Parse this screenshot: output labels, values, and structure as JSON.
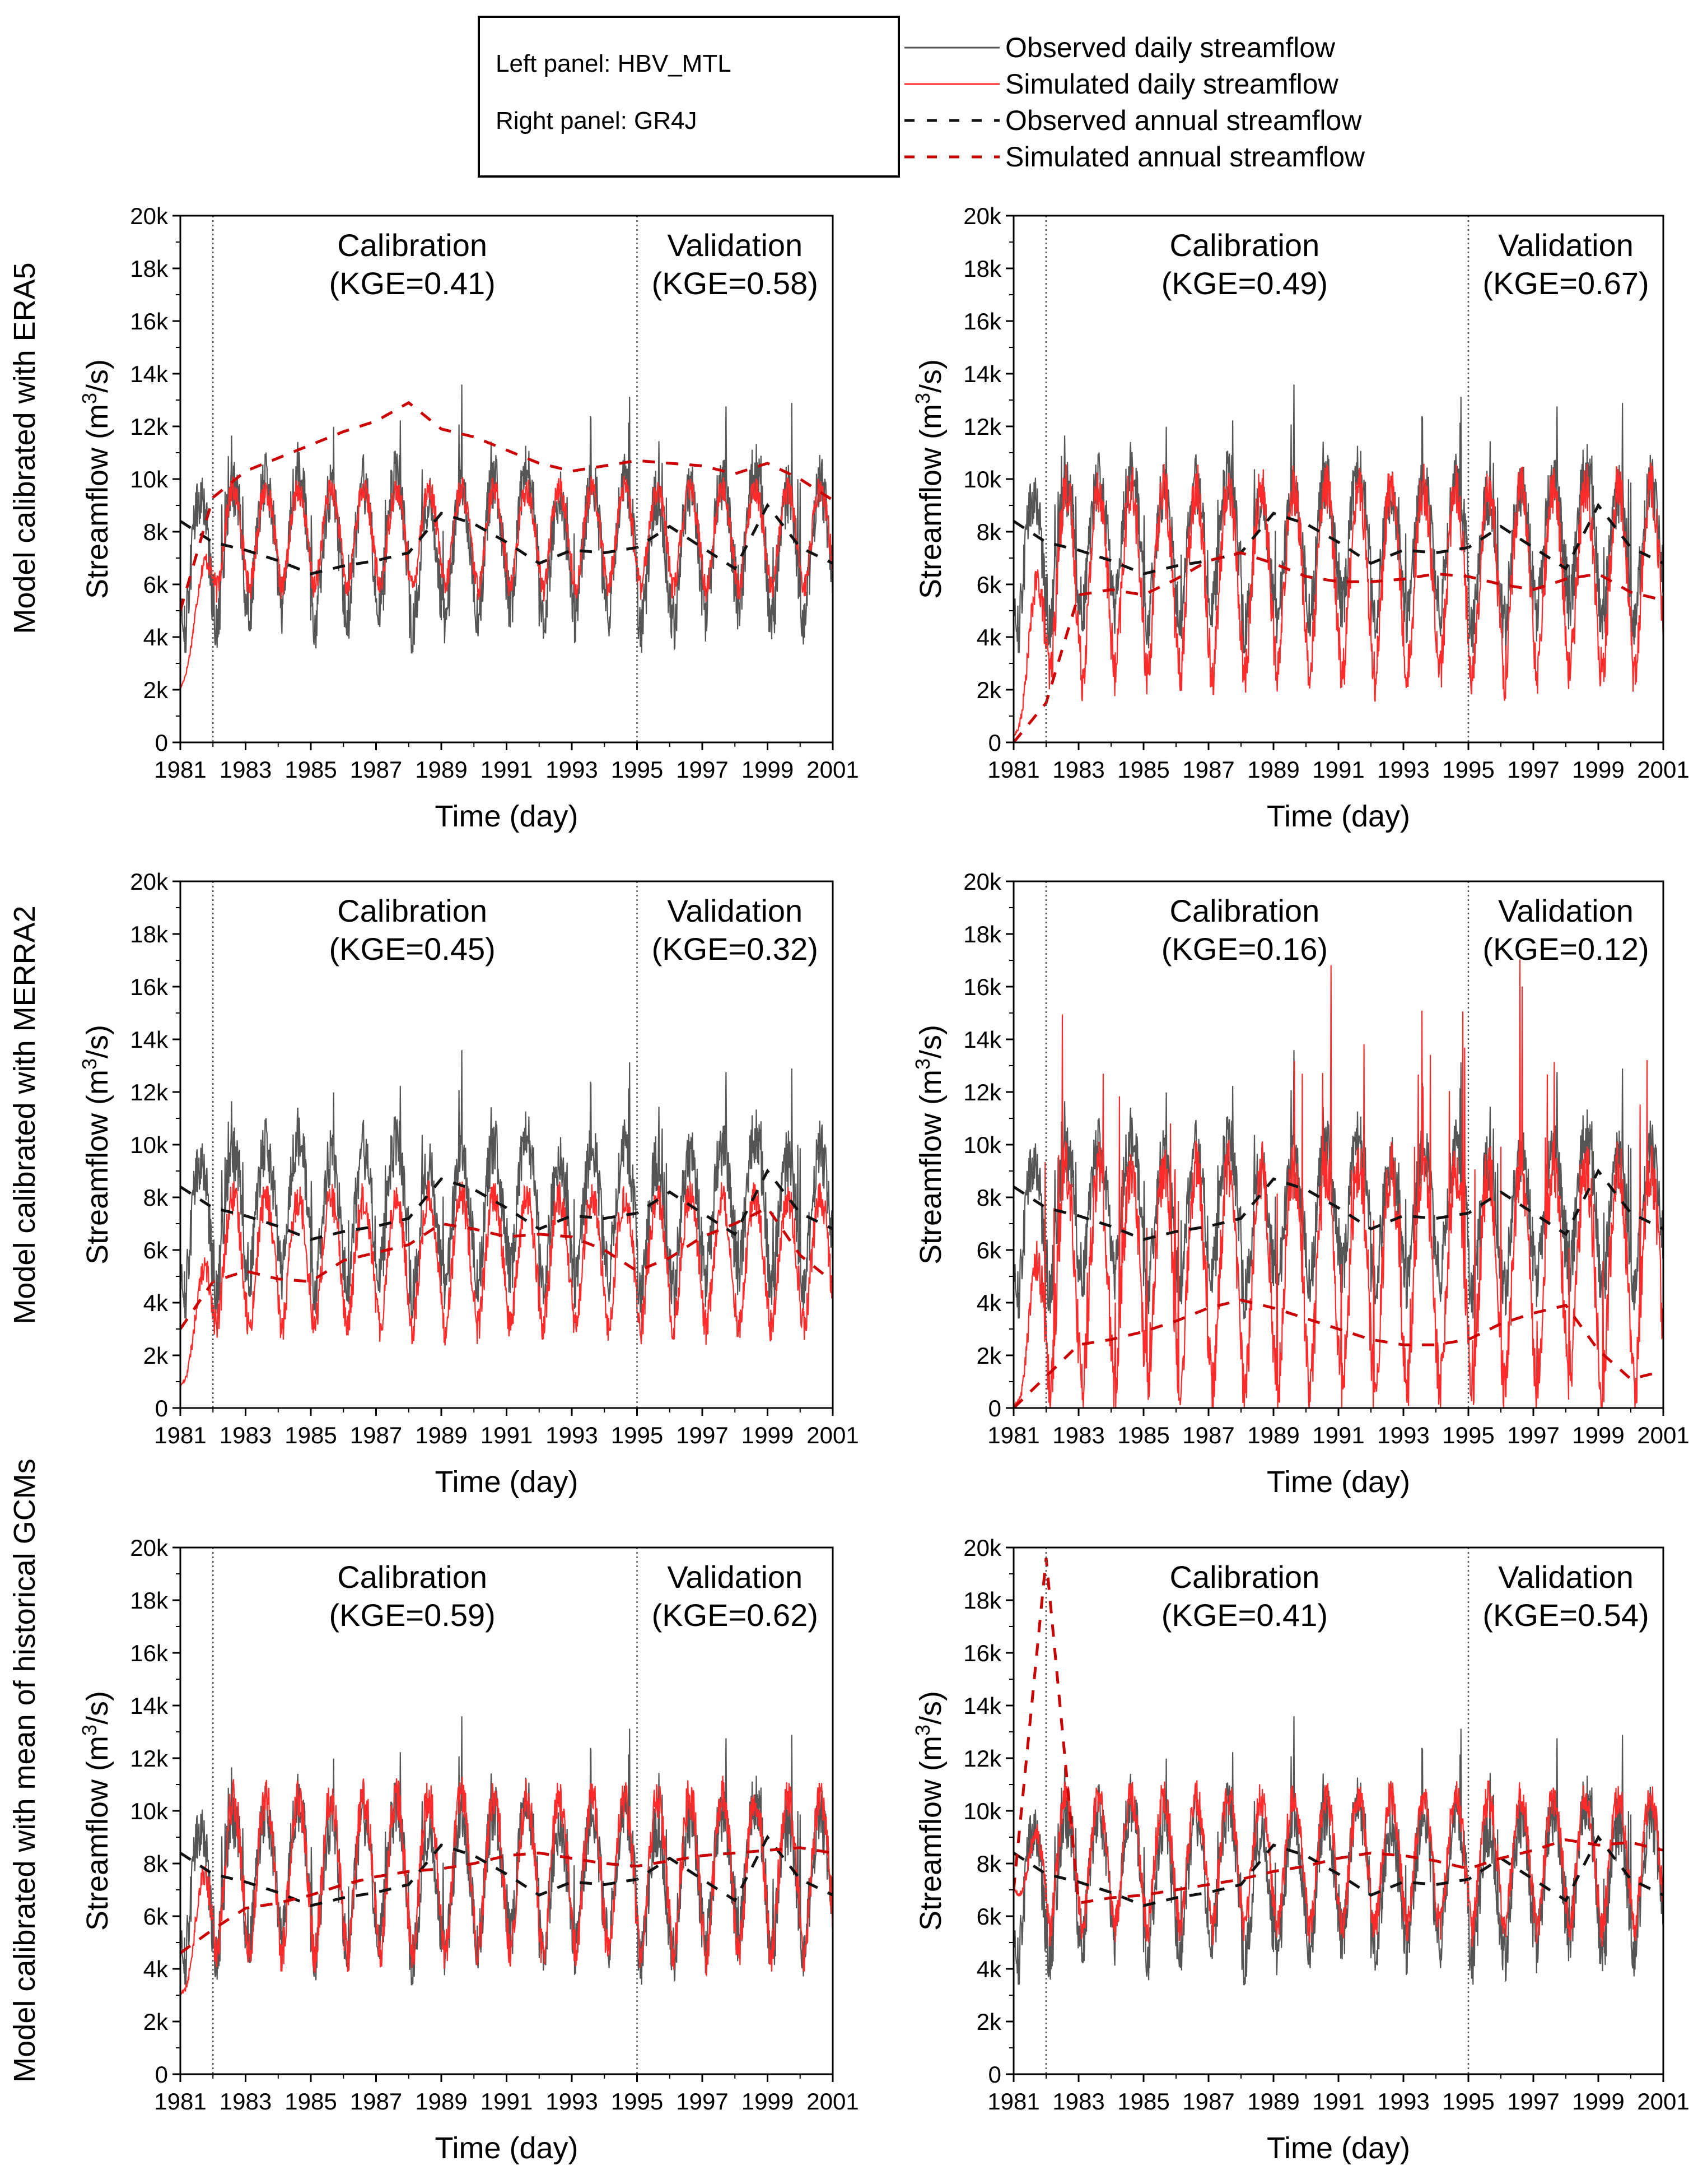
{
  "legend": {
    "panel_notes": [
      "Left panel: HBV_MTL",
      "Right panel: GR4J"
    ],
    "entries": [
      {
        "label": "Observed daily streamflow",
        "color": "#555555",
        "style": "solid"
      },
      {
        "label": "Simulated daily streamflow",
        "color": "#ff2a2a",
        "style": "solid"
      },
      {
        "label": "Observed annual streamflow",
        "color": "#111111",
        "style": "dashed"
      },
      {
        "label": "Simulated annual streamflow",
        "color": "#cc0000",
        "style": "dashed"
      }
    ]
  },
  "row_labels": [
    "Model calibrated with ERA5",
    "Model calibrated with MERRA2",
    "Model calibrated with mean of historical GCMs"
  ],
  "chart_data": [
    {
      "type": "line",
      "model": "HBV_MTL",
      "forcing": "ERA5",
      "xlabel": "Time (day)",
      "ylabel": "Streamflow (m3/s)",
      "xlim": [
        1981,
        2001
      ],
      "ylim": [
        0,
        20000
      ],
      "xticks": [
        "1981",
        "1983",
        "1985",
        "1987",
        "1989",
        "1991",
        "1993",
        "1995",
        "1997",
        "1999",
        "2001"
      ],
      "yticks": [
        "0",
        "2k",
        "4k",
        "6k",
        "8k",
        "10k",
        "12k",
        "14k",
        "16k",
        "18k",
        "20k"
      ],
      "periods": {
        "calibration_start": 1982,
        "validation_start": 1995
      },
      "annotations": [
        {
          "text": "Calibration",
          "sub": "(KGE=0.41)"
        },
        {
          "text": "Validation",
          "sub": "(KGE=0.58)"
        }
      ],
      "sim_daily": {
        "base": 5800,
        "amp": 3800,
        "start_level": 2000
      },
      "observed_annual": [
        8400,
        7600,
        7300,
        6900,
        6400,
        6700,
        6900,
        7200,
        8700,
        8300,
        7600,
        6800,
        7300,
        7200,
        7400,
        8200,
        7400,
        6600,
        9000,
        7400,
        6800
      ],
      "simulated_annual": [
        5000,
        9300,
        10300,
        10800,
        11300,
        11800,
        12200,
        12900,
        11900,
        11600,
        11100,
        10600,
        10300,
        10500,
        10700,
        10600,
        10500,
        10200,
        10600,
        10000,
        9200
      ]
    },
    {
      "type": "line",
      "model": "GR4J",
      "forcing": "ERA5",
      "xlabel": "Time (day)",
      "ylabel": "Streamflow (m3/s)",
      "xlim": [
        1981,
        2001
      ],
      "ylim": [
        0,
        20000
      ],
      "xticks": [
        "1981",
        "1983",
        "1985",
        "1987",
        "1989",
        "1991",
        "1993",
        "1995",
        "1997",
        "1999",
        "2001"
      ],
      "yticks": [
        "0",
        "2k",
        "4k",
        "6k",
        "8k",
        "10k",
        "12k",
        "14k",
        "16k",
        "18k",
        "20k"
      ],
      "periods": {
        "calibration_start": 1982,
        "validation_start": 1995
      },
      "annotations": [
        {
          "text": "Calibration",
          "sub": "(KGE=0.49)"
        },
        {
          "text": "Validation",
          "sub": "(KGE=0.67)"
        }
      ],
      "sim_daily": {
        "base": 2500,
        "amp": 7200,
        "start_level": 200
      },
      "observed_annual": [
        8400,
        7600,
        7300,
        6900,
        6400,
        6700,
        6900,
        7200,
        8700,
        8300,
        7600,
        6800,
        7300,
        7200,
        7400,
        8200,
        7400,
        6600,
        9000,
        7400,
        6800
      ],
      "simulated_annual": [
        0,
        1500,
        5600,
        5800,
        5600,
        6200,
        6900,
        7200,
        6800,
        6300,
        6100,
        6100,
        6200,
        6400,
        6300,
        6000,
        5800,
        6200,
        6400,
        5700,
        5400
      ]
    },
    {
      "type": "line",
      "model": "HBV_MTL",
      "forcing": "MERRA2",
      "xlabel": "Time (day)",
      "ylabel": "Streamflow (m3/s)",
      "xlim": [
        1981,
        2001
      ],
      "ylim": [
        0,
        20000
      ],
      "xticks": [
        "1981",
        "1983",
        "1985",
        "1987",
        "1989",
        "1991",
        "1993",
        "1995",
        "1997",
        "1999",
        "2001"
      ],
      "yticks": [
        "0",
        "2k",
        "4k",
        "6k",
        "8k",
        "10k",
        "12k",
        "14k",
        "16k",
        "18k",
        "20k"
      ],
      "periods": {
        "calibration_start": 1982,
        "validation_start": 1995
      },
      "annotations": [
        {
          "text": "Calibration",
          "sub": "(KGE=0.45)"
        },
        {
          "text": "Validation",
          "sub": "(KGE=0.32)"
        }
      ],
      "sim_daily": {
        "base": 3000,
        "amp": 5000,
        "start_level": 800
      },
      "observed_annual": [
        8400,
        7600,
        7300,
        6900,
        6400,
        6700,
        6900,
        7200,
        8700,
        8300,
        7600,
        6800,
        7300,
        7200,
        7400,
        8200,
        7400,
        6600,
        9000,
        7400,
        6800
      ],
      "simulated_annual": [
        3000,
        4800,
        5200,
        4900,
        4800,
        5600,
        5900,
        6200,
        7000,
        6800,
        6500,
        6600,
        6500,
        6000,
        5200,
        5700,
        6500,
        7000,
        7600,
        5800,
        4800
      ]
    },
    {
      "type": "line",
      "model": "GR4J",
      "forcing": "MERRA2",
      "xlabel": "Time (day)",
      "ylabel": "Streamflow (m3/s)",
      "xlim": [
        1981,
        2001
      ],
      "ylim": [
        0,
        20000
      ],
      "xticks": [
        "1981",
        "1983",
        "1985",
        "1987",
        "1989",
        "1991",
        "1993",
        "1995",
        "1997",
        "1999",
        "2001"
      ],
      "yticks": [
        "0",
        "2k",
        "4k",
        "6k",
        "8k",
        "10k",
        "12k",
        "14k",
        "16k",
        "18k",
        "20k"
      ],
      "periods": {
        "calibration_start": 1982,
        "validation_start": 1995
      },
      "annotations": [
        {
          "text": "Calibration",
          "sub": "(KGE=0.16)"
        },
        {
          "text": "Validation",
          "sub": "(KGE=0.12)"
        }
      ],
      "sim_daily": {
        "base": 600,
        "amp": 8500,
        "start_level": 100
      },
      "observed_annual": [
        8400,
        7600,
        7300,
        6900,
        6400,
        6700,
        6900,
        7200,
        8700,
        8300,
        7600,
        6800,
        7300,
        7200,
        7400,
        8200,
        7400,
        6600,
        9000,
        7400,
        6800
      ],
      "simulated_annual": [
        0,
        1200,
        2400,
        2600,
        2900,
        3300,
        3800,
        4100,
        3800,
        3400,
        3000,
        2600,
        2400,
        2400,
        2600,
        3200,
        3600,
        3900,
        2200,
        1100,
        1400
      ]
    },
    {
      "type": "line",
      "model": "HBV_MTL",
      "forcing": "mean of historical GCMs",
      "xlabel": "Time (day)",
      "ylabel": "Streamflow (m3/s)",
      "xlim": [
        1981,
        2001
      ],
      "ylim": [
        0,
        20000
      ],
      "xticks": [
        "1981",
        "1983",
        "1985",
        "1987",
        "1989",
        "1991",
        "1993",
        "1995",
        "1997",
        "1999",
        "2001"
      ],
      "yticks": [
        "0",
        "2k",
        "4k",
        "6k",
        "8k",
        "10k",
        "12k",
        "14k",
        "16k",
        "18k",
        "20k"
      ],
      "periods": {
        "calibration_start": 1982,
        "validation_start": 1995
      },
      "annotations": [
        {
          "text": "Calibration",
          "sub": "(KGE=0.59)"
        },
        {
          "text": "Validation",
          "sub": "(KGE=0.62)"
        }
      ],
      "sim_daily": {
        "base": 4500,
        "amp": 6000,
        "start_level": 3000
      },
      "observed_annual": [
        8400,
        7600,
        7300,
        6900,
        6400,
        6700,
        6900,
        7200,
        8700,
        8300,
        7600,
        6800,
        7300,
        7200,
        7400,
        8200,
        7400,
        6600,
        9000,
        7400,
        6800
      ],
      "simulated_annual": [
        4600,
        5500,
        6300,
        6500,
        6800,
        7200,
        7500,
        7700,
        7800,
        8000,
        8300,
        8400,
        8200,
        8000,
        7900,
        8100,
        8300,
        8400,
        8500,
        8600,
        8400
      ]
    },
    {
      "type": "line",
      "model": "GR4J",
      "forcing": "mean of historical GCMs",
      "xlabel": "Time (day)",
      "ylabel": "Streamflow (m3/s)",
      "xlim": [
        1981,
        2001
      ],
      "ylim": [
        0,
        20000
      ],
      "xticks": [
        "1981",
        "1983",
        "1985",
        "1987",
        "1989",
        "1991",
        "1993",
        "1995",
        "1997",
        "1999",
        "2001"
      ],
      "yticks": [
        "0",
        "2k",
        "4k",
        "6k",
        "8k",
        "10k",
        "12k",
        "14k",
        "16k",
        "18k",
        "20k"
      ],
      "periods": {
        "calibration_start": 1982,
        "validation_start": 1995
      },
      "annotations": [
        {
          "text": "Calibration",
          "sub": "(KGE=0.41)"
        },
        {
          "text": "Validation",
          "sub": "(KGE=0.54)"
        }
      ],
      "sim_daily": {
        "base": 5500,
        "amp": 5000,
        "start_level": 7000
      },
      "observed_annual": [
        8400,
        7600,
        7300,
        6900,
        6400,
        6700,
        6900,
        7200,
        8700,
        8300,
        7600,
        6800,
        7300,
        7200,
        7400,
        8200,
        7400,
        6600,
        9000,
        7400,
        6800
      ],
      "simulated_annual": [
        7000,
        19600,
        6500,
        6700,
        6800,
        7000,
        7200,
        7400,
        7700,
        7900,
        8200,
        8400,
        8300,
        8100,
        7800,
        8200,
        8500,
        8900,
        8700,
        8800,
        8500
      ]
    }
  ]
}
